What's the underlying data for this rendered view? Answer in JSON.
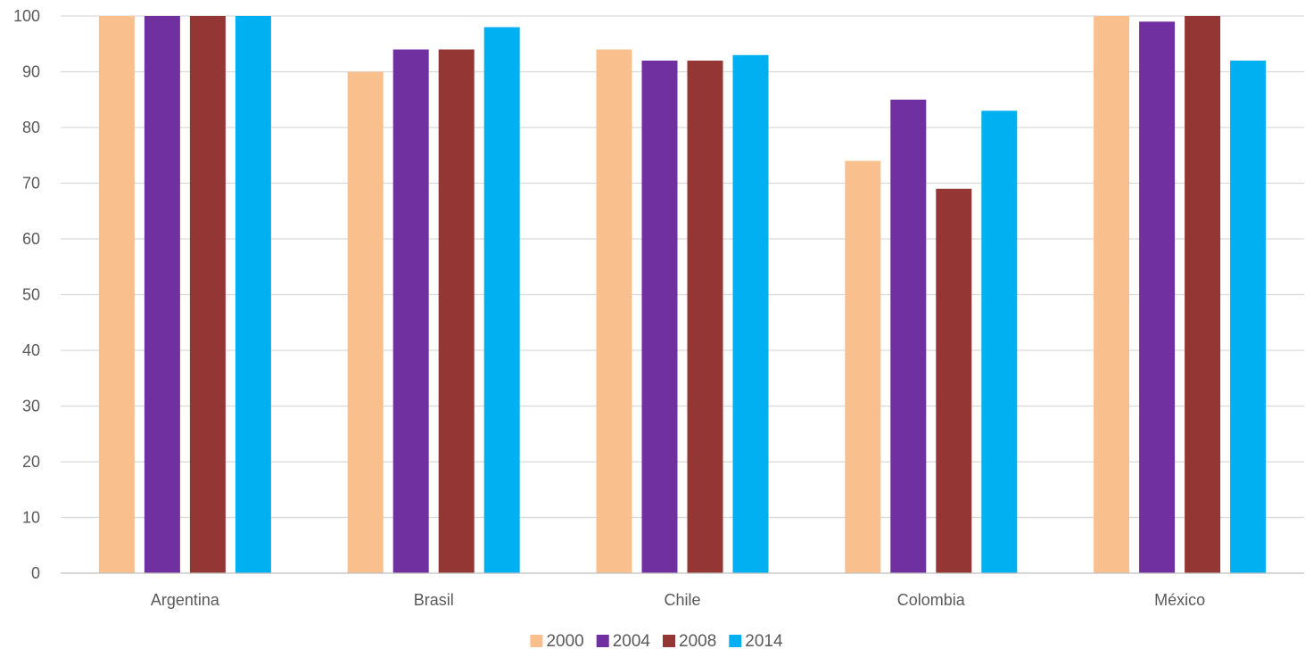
{
  "chart_data": {
    "type": "bar",
    "title": "",
    "xlabel": "",
    "ylabel": "",
    "categories": [
      "Argentina",
      "Brasil",
      "Chile",
      "Colombia",
      "México"
    ],
    "series": [
      {
        "name": "2000",
        "color": "#F9C08E",
        "values": [
          100,
          90,
          94,
          74,
          100
        ]
      },
      {
        "name": "2004",
        "color": "#7030A0",
        "values": [
          100,
          94,
          92,
          85,
          99
        ]
      },
      {
        "name": "2008",
        "color": "#943634",
        "values": [
          100,
          94,
          92,
          69,
          100
        ]
      },
      {
        "name": "2014",
        "color": "#00B0F0",
        "values": [
          100,
          98,
          93,
          83,
          92
        ]
      }
    ],
    "ylim": [
      0,
      100
    ],
    "yticks": [
      "0",
      "10",
      "20",
      "30",
      "40",
      "50",
      "60",
      "70",
      "80",
      "90",
      "100"
    ],
    "grid": true,
    "legend_position": "bottom-center",
    "colors": {
      "gridline": "#D9D9D9",
      "axis_line": "#BFBFBF",
      "text": "#595959"
    }
  }
}
